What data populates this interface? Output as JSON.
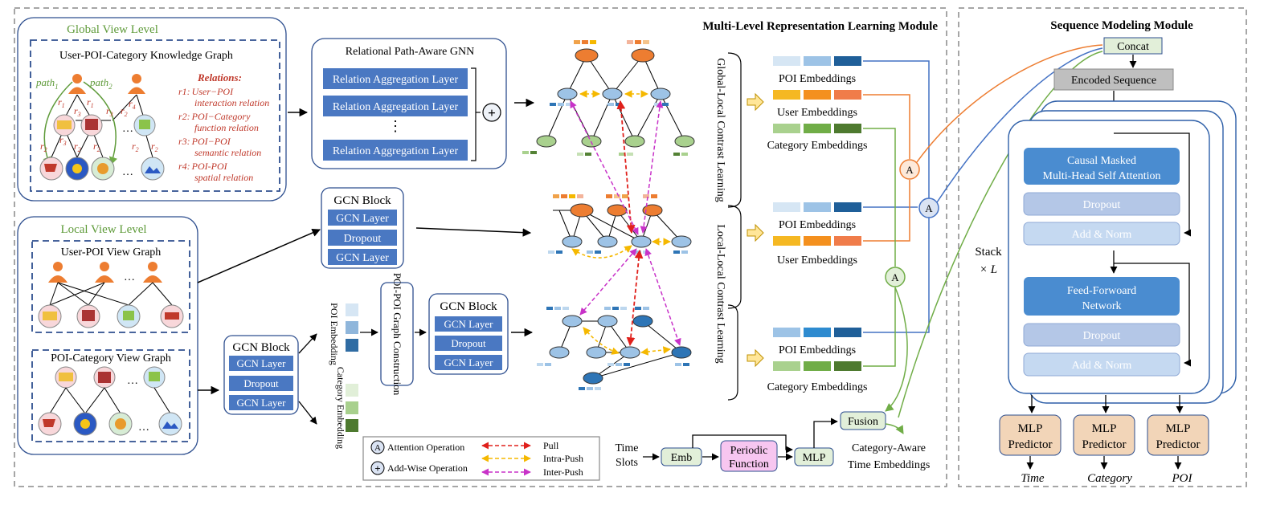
{
  "modules": {
    "multi_level": "Multi-Level Representation Learning Module",
    "sequence": "Sequence Modeling Module"
  },
  "global_view": {
    "title": "Global View Level",
    "kg_title": "User-POI-Category Knowledge Graph",
    "path1": "path",
    "path1_sub": "1",
    "path2": "path",
    "path2_sub": "2",
    "r_labels": [
      "r",
      "r",
      "r",
      "r",
      "r",
      "r",
      "r",
      "r",
      "r",
      "r",
      "r",
      "r"
    ],
    "r_subs": [
      "1",
      "3",
      "1",
      "3",
      "2",
      "3",
      "2",
      "2",
      "4",
      "2",
      "2",
      "2"
    ],
    "relations_title": "Relations",
    "relations": [
      {
        "code": "r1:",
        "line1": "User−POI",
        "line2": "interaction relation"
      },
      {
        "code": "r2:",
        "line1": "POI−Category",
        "line2": "function relation"
      },
      {
        "code": "r3:",
        "line1": "POI−POI",
        "line2": "semantic relation"
      },
      {
        "code": "r4:",
        "line1": "POI-POI",
        "line2": "spatial relation"
      }
    ],
    "dots": "…"
  },
  "rpgnn": {
    "title": "Relational Path-Aware GNN",
    "layer": "Relation Aggregation Layer",
    "vdots": "⋮"
  },
  "local_view": {
    "title": "Local View  Level",
    "user_poi": "User-POI View Graph",
    "poi_cat": "POI-Category View Graph",
    "dots": "…"
  },
  "gcn_block": {
    "title": "GCN Block",
    "layer": "GCN Layer",
    "dropout": "Dropout"
  },
  "poi_embedding_label": "POI Embedding",
  "category_embedding_label": "Category Embedding",
  "poi_poi_graph": "POI-POI Graph Construction",
  "contrast": {
    "global_local": "Global-Local Contrast Learning",
    "local_local": "Local-Local Contrast Learning"
  },
  "embeddings": {
    "poi": "POI Embeddings",
    "user": "User Embeddings",
    "category": "Category Embeddings"
  },
  "attention_symbol": "A",
  "plus_symbol": "+",
  "legend": {
    "attention": "Attention  Operation",
    "addwise": "Add-Wise Operation",
    "pull": "Pull",
    "intra": "Intra-Push",
    "inter": "Inter-Push"
  },
  "time": {
    "slots_line1": "Time",
    "slots_line2": "Slots",
    "emb": "Emb",
    "periodic_line1": "Periodic",
    "periodic_line2": "Function",
    "mlp": "MLP",
    "fusion": "Fusion",
    "cat_time_line1": "Category-Aware",
    "cat_time_line2": "Time Embeddings"
  },
  "sequence": {
    "concat": "Concat",
    "encoded": "Encoded Sequence",
    "attn_line1": "Causal Masked",
    "attn_line2": "Multi-Head Self Attention",
    "dropout": "Dropout",
    "addnorm": "Add & Norm",
    "ffn_line1": "Feed-Forwoard",
    "ffn_line2": "Network",
    "stack": "Stack",
    "stack_l": "× L",
    "mlp_line1": "MLP",
    "mlp_line2": "Predictor",
    "outputs": [
      "Time",
      "Category",
      "POI"
    ]
  },
  "colors": {
    "blue_layer": "#4a78c2",
    "orange": "#ed7d31",
    "green": "#70ad47",
    "pull": "#e0201b",
    "intra": "#f5b800",
    "inter": "#c832c8"
  }
}
